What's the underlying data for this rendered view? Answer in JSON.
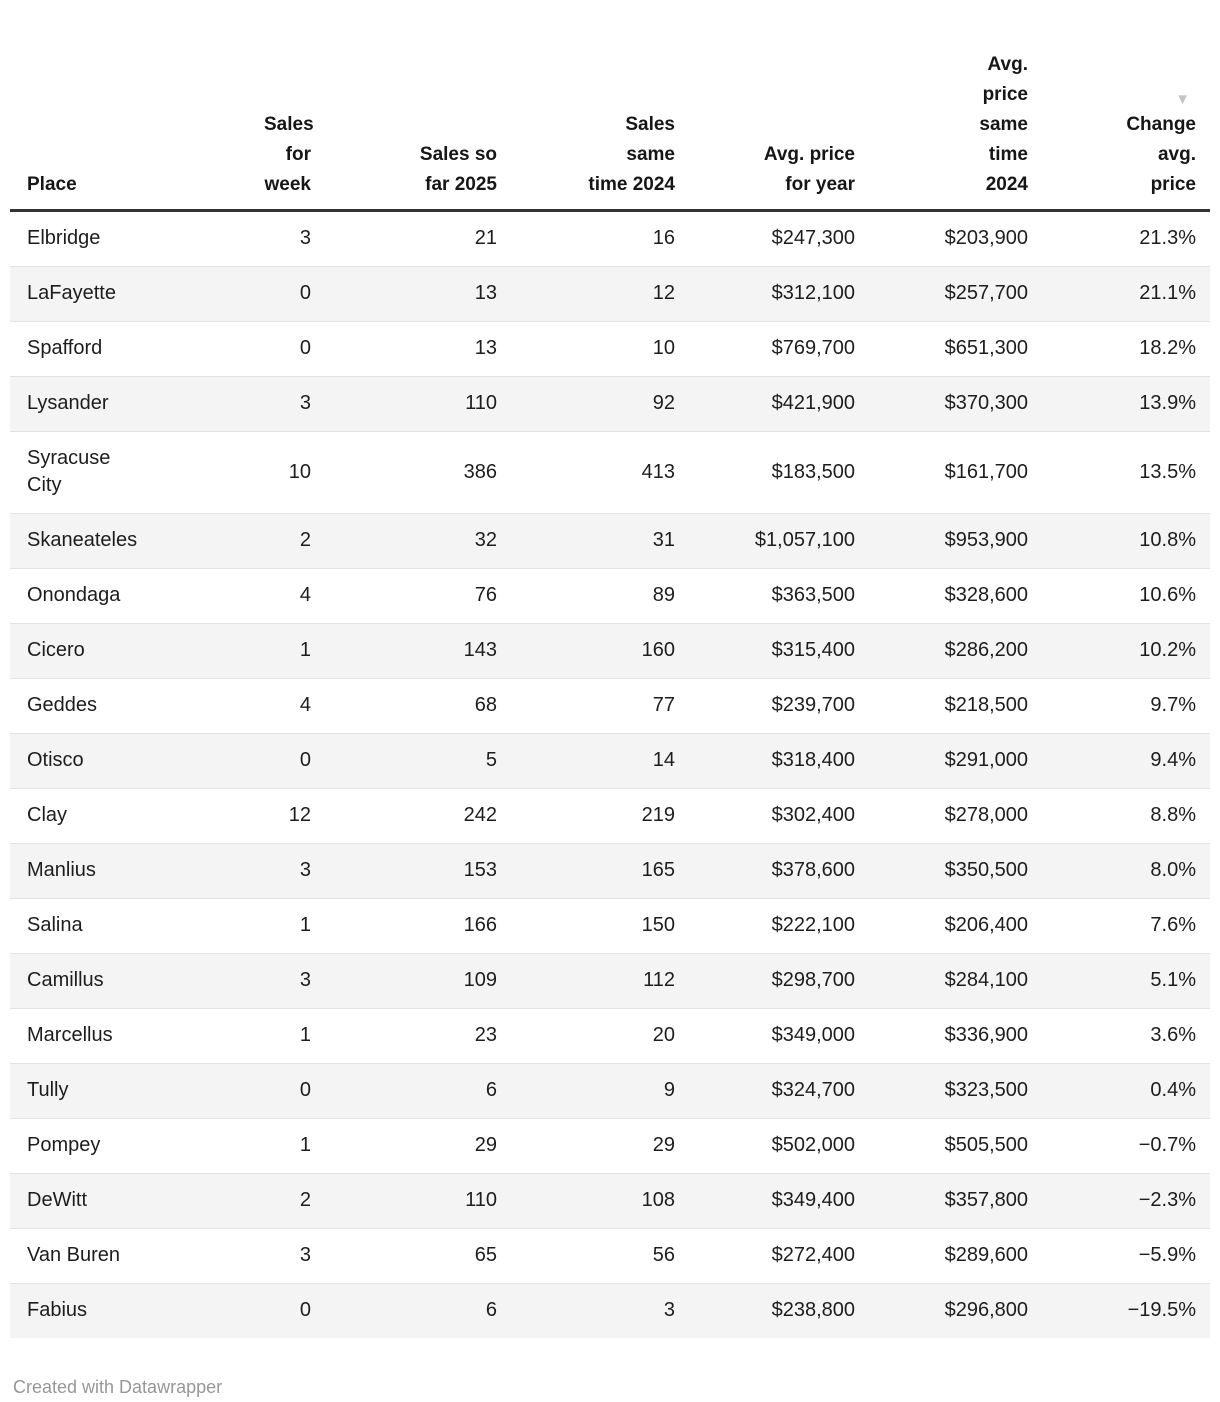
{
  "table": {
    "columns": [
      {
        "label": "Place",
        "align": "left",
        "sorted": false
      },
      {
        "label": "Sales\nfor\nweek",
        "align": "right",
        "sorted": false
      },
      {
        "label": "Sales so\nfar 2025",
        "align": "right",
        "sorted": false
      },
      {
        "label": "Sales\nsame\ntime 2024",
        "align": "right",
        "sorted": false
      },
      {
        "label": "Avg. price\nfor year",
        "align": "right",
        "sorted": false
      },
      {
        "label": "Avg.\nprice\nsame\ntime\n2024",
        "align": "right",
        "sorted": false
      },
      {
        "label": "Change\navg.\nprice",
        "align": "right",
        "sorted": true
      }
    ],
    "sort_icon": "▼",
    "rows": [
      [
        "Elbridge",
        "3",
        "21",
        "16",
        "$247,300",
        "$203,900",
        "21.3%"
      ],
      [
        "LaFayette",
        "0",
        "13",
        "12",
        "$312,100",
        "$257,700",
        "21.1%"
      ],
      [
        "Spafford",
        "0",
        "13",
        "10",
        "$769,700",
        "$651,300",
        "18.2%"
      ],
      [
        "Lysander",
        "3",
        "110",
        "92",
        "$421,900",
        "$370,300",
        "13.9%"
      ],
      [
        "Syracuse\nCity",
        "10",
        "386",
        "413",
        "$183,500",
        "$161,700",
        "13.5%"
      ],
      [
        "Skaneateles",
        "2",
        "32",
        "31",
        "$1,057,100",
        "$953,900",
        "10.8%"
      ],
      [
        "Onondaga",
        "4",
        "76",
        "89",
        "$363,500",
        "$328,600",
        "10.6%"
      ],
      [
        "Cicero",
        "1",
        "143",
        "160",
        "$315,400",
        "$286,200",
        "10.2%"
      ],
      [
        "Geddes",
        "4",
        "68",
        "77",
        "$239,700",
        "$218,500",
        "9.7%"
      ],
      [
        "Otisco",
        "0",
        "5",
        "14",
        "$318,400",
        "$291,000",
        "9.4%"
      ],
      [
        "Clay",
        "12",
        "242",
        "219",
        "$302,400",
        "$278,000",
        "8.8%"
      ],
      [
        "Manlius",
        "3",
        "153",
        "165",
        "$378,600",
        "$350,500",
        "8.0%"
      ],
      [
        "Salina",
        "1",
        "166",
        "150",
        "$222,100",
        "$206,400",
        "7.6%"
      ],
      [
        "Camillus",
        "3",
        "109",
        "112",
        "$298,700",
        "$284,100",
        "5.1%"
      ],
      [
        "Marcellus",
        "1",
        "23",
        "20",
        "$349,000",
        "$336,900",
        "3.6%"
      ],
      [
        "Tully",
        "0",
        "6",
        "9",
        "$324,700",
        "$323,500",
        "0.4%"
      ],
      [
        "Pompey",
        "1",
        "29",
        "29",
        "$502,000",
        "$505,500",
        "−0.7%"
      ],
      [
        "DeWitt",
        "2",
        "110",
        "108",
        "$349,400",
        "$357,800",
        "−2.3%"
      ],
      [
        "Van Buren",
        "3",
        "65",
        "56",
        "$272,400",
        "$289,600",
        "−5.9%"
      ],
      [
        "Fabius",
        "0",
        "6",
        "3",
        "$238,800",
        "$296,800",
        "−19.5%"
      ]
    ]
  },
  "chart_data": {
    "type": "table",
    "title": "",
    "columns": [
      "Place",
      "Sales for week",
      "Sales so far 2025",
      "Sales same time 2024",
      "Avg. price for year",
      "Avg. price same time 2024",
      "Change avg. price"
    ],
    "sort": {
      "column": "Change avg. price",
      "direction": "descending"
    },
    "rows": [
      {
        "place": "Elbridge",
        "sales_for_week": 3,
        "sales_so_far_2025": 21,
        "sales_same_time_2024": 16,
        "avg_price_for_year": 247300,
        "avg_price_same_time_2024": 203900,
        "change_avg_price_pct": 21.3
      },
      {
        "place": "LaFayette",
        "sales_for_week": 0,
        "sales_so_far_2025": 13,
        "sales_same_time_2024": 12,
        "avg_price_for_year": 312100,
        "avg_price_same_time_2024": 257700,
        "change_avg_price_pct": 21.1
      },
      {
        "place": "Spafford",
        "sales_for_week": 0,
        "sales_so_far_2025": 13,
        "sales_same_time_2024": 10,
        "avg_price_for_year": 769700,
        "avg_price_same_time_2024": 651300,
        "change_avg_price_pct": 18.2
      },
      {
        "place": "Lysander",
        "sales_for_week": 3,
        "sales_so_far_2025": 110,
        "sales_same_time_2024": 92,
        "avg_price_for_year": 421900,
        "avg_price_same_time_2024": 370300,
        "change_avg_price_pct": 13.9
      },
      {
        "place": "Syracuse City",
        "sales_for_week": 10,
        "sales_so_far_2025": 386,
        "sales_same_time_2024": 413,
        "avg_price_for_year": 183500,
        "avg_price_same_time_2024": 161700,
        "change_avg_price_pct": 13.5
      },
      {
        "place": "Skaneateles",
        "sales_for_week": 2,
        "sales_so_far_2025": 32,
        "sales_same_time_2024": 31,
        "avg_price_for_year": 1057100,
        "avg_price_same_time_2024": 953900,
        "change_avg_price_pct": 10.8
      },
      {
        "place": "Onondaga",
        "sales_for_week": 4,
        "sales_so_far_2025": 76,
        "sales_same_time_2024": 89,
        "avg_price_for_year": 363500,
        "avg_price_same_time_2024": 328600,
        "change_avg_price_pct": 10.6
      },
      {
        "place": "Cicero",
        "sales_for_week": 1,
        "sales_so_far_2025": 143,
        "sales_same_time_2024": 160,
        "avg_price_for_year": 315400,
        "avg_price_same_time_2024": 286200,
        "change_avg_price_pct": 10.2
      },
      {
        "place": "Geddes",
        "sales_for_week": 4,
        "sales_so_far_2025": 68,
        "sales_same_time_2024": 77,
        "avg_price_for_year": 239700,
        "avg_price_same_time_2024": 218500,
        "change_avg_price_pct": 9.7
      },
      {
        "place": "Otisco",
        "sales_for_week": 0,
        "sales_so_far_2025": 5,
        "sales_same_time_2024": 14,
        "avg_price_for_year": 318400,
        "avg_price_same_time_2024": 291000,
        "change_avg_price_pct": 9.4
      },
      {
        "place": "Clay",
        "sales_for_week": 12,
        "sales_so_far_2025": 242,
        "sales_same_time_2024": 219,
        "avg_price_for_year": 302400,
        "avg_price_same_time_2024": 278000,
        "change_avg_price_pct": 8.8
      },
      {
        "place": "Manlius",
        "sales_for_week": 3,
        "sales_so_far_2025": 153,
        "sales_same_time_2024": 165,
        "avg_price_for_year": 378600,
        "avg_price_same_time_2024": 350500,
        "change_avg_price_pct": 8.0
      },
      {
        "place": "Salina",
        "sales_for_week": 1,
        "sales_so_far_2025": 166,
        "sales_same_time_2024": 150,
        "avg_price_for_year": 222100,
        "avg_price_same_time_2024": 206400,
        "change_avg_price_pct": 7.6
      },
      {
        "place": "Camillus",
        "sales_for_week": 3,
        "sales_so_far_2025": 109,
        "sales_same_time_2024": 112,
        "avg_price_for_year": 298700,
        "avg_price_same_time_2024": 284100,
        "change_avg_price_pct": 5.1
      },
      {
        "place": "Marcellus",
        "sales_for_week": 1,
        "sales_so_far_2025": 23,
        "sales_same_time_2024": 20,
        "avg_price_for_year": 349000,
        "avg_price_same_time_2024": 336900,
        "change_avg_price_pct": 3.6
      },
      {
        "place": "Tully",
        "sales_for_week": 0,
        "sales_so_far_2025": 6,
        "sales_same_time_2024": 9,
        "avg_price_for_year": 324700,
        "avg_price_same_time_2024": 323500,
        "change_avg_price_pct": 0.4
      },
      {
        "place": "Pompey",
        "sales_for_week": 1,
        "sales_so_far_2025": 29,
        "sales_same_time_2024": 29,
        "avg_price_for_year": 502000,
        "avg_price_same_time_2024": 505500,
        "change_avg_price_pct": -0.7
      },
      {
        "place": "DeWitt",
        "sales_for_week": 2,
        "sales_so_far_2025": 110,
        "sales_same_time_2024": 108,
        "avg_price_for_year": 349400,
        "avg_price_same_time_2024": 357800,
        "change_avg_price_pct": -2.3
      },
      {
        "place": "Van Buren",
        "sales_for_week": 3,
        "sales_so_far_2025": 65,
        "sales_same_time_2024": 56,
        "avg_price_for_year": 272400,
        "avg_price_same_time_2024": 289600,
        "change_avg_price_pct": -5.9
      },
      {
        "place": "Fabius",
        "sales_for_week": 0,
        "sales_so_far_2025": 6,
        "sales_same_time_2024": 3,
        "avg_price_for_year": 238800,
        "avg_price_same_time_2024": 296800,
        "change_avg_price_pct": -19.5
      }
    ]
  },
  "footer": {
    "credit": "Created with Datawrapper"
  },
  "colors": {
    "stripe": "#f4f4f4",
    "header_border": "#333333",
    "row_border": "#e3e3e3",
    "text": "#1d1d1d",
    "sort_arrow": "#c4c4c4",
    "footer_text": "#979797"
  }
}
